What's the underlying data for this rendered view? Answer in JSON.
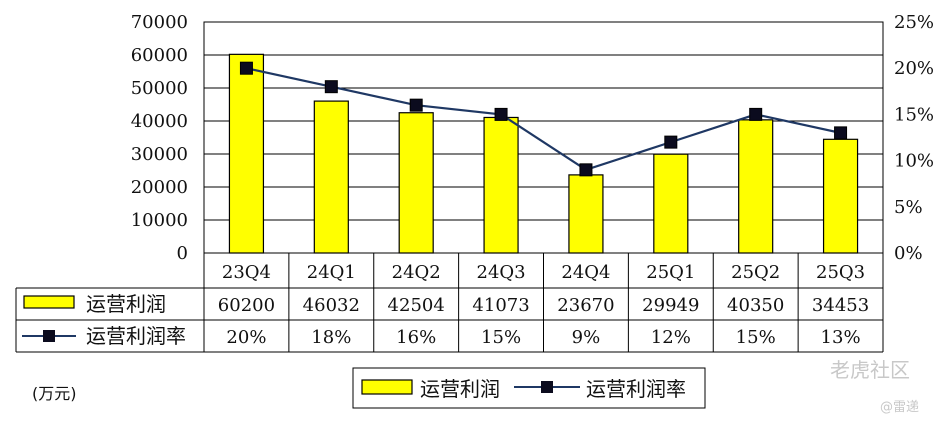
{
  "chart_data": {
    "type": "bar",
    "categories": [
      "23Q4",
      "24Q1",
      "24Q2",
      "24Q3",
      "24Q4",
      "25Q1",
      "25Q2",
      "25Q3"
    ],
    "series": [
      {
        "name": "运营利润",
        "type": "bar",
        "axis": "left",
        "values": [
          60200,
          46032,
          42504,
          41073,
          23670,
          29949,
          40350,
          34453
        ],
        "labels": [
          "60200",
          "46032",
          "42504",
          "41073",
          "23670",
          "29949",
          "40350",
          "34453"
        ],
        "color": "#ffff00"
      },
      {
        "name": "运营利润率",
        "type": "line",
        "axis": "right",
        "values": [
          20,
          18,
          16,
          15,
          9,
          12,
          15,
          13
        ],
        "labels": [
          "20%",
          "18%",
          "16%",
          "15%",
          "9%",
          "12%",
          "15%",
          "13%"
        ],
        "color": "#1f3864"
      }
    ],
    "y_left": {
      "range": [
        0,
        70000
      ],
      "ticks": [
        "0",
        "10000",
        "20000",
        "30000",
        "40000",
        "50000",
        "60000",
        "70000"
      ]
    },
    "y_right": {
      "range": [
        0,
        25
      ],
      "ticks": [
        "0%",
        "5%",
        "10%",
        "15%",
        "20%",
        "25%"
      ]
    },
    "grid": true,
    "unit_label": "(万元)",
    "legend_position": "bottom-center",
    "data_table": true
  },
  "watermarks": {
    "site": "老虎社区",
    "author": "@雷递"
  }
}
